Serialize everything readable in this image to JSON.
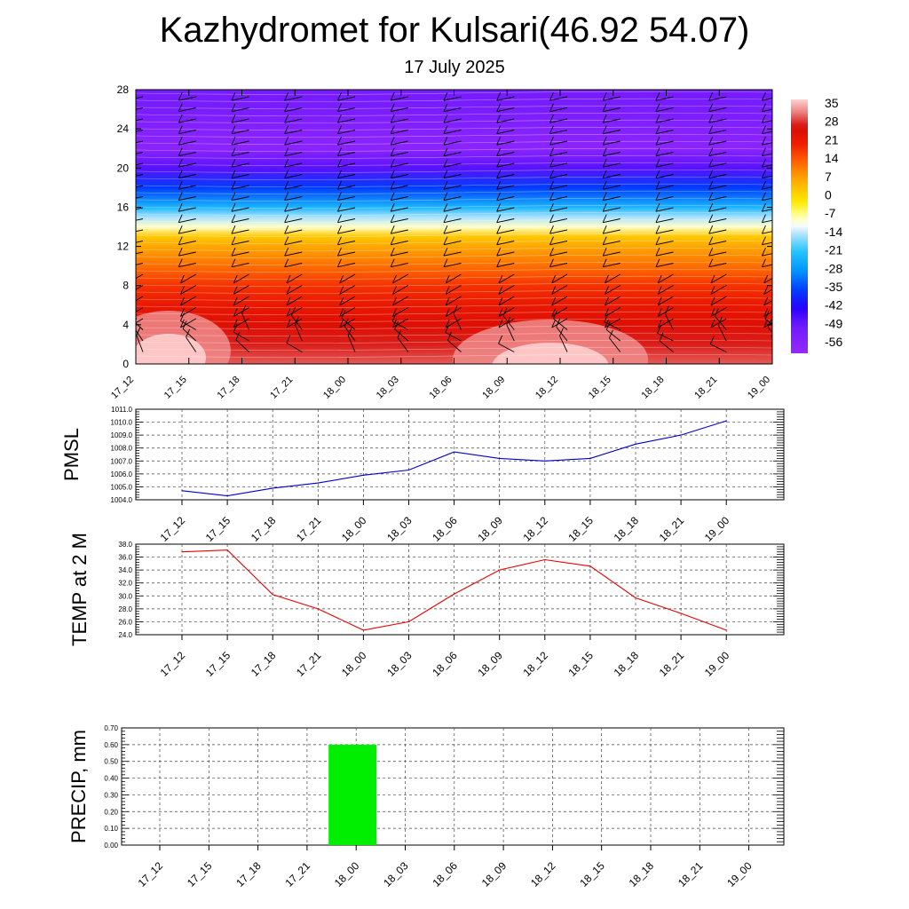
{
  "header": {
    "title": "Kazhydromet for Kulsari(46.92 54.07)",
    "date": "17 July 2025"
  },
  "chart_data": [
    {
      "id": "cross-section",
      "type": "heatmap",
      "title": "",
      "xlabel": "",
      "ylabel": "",
      "categories": [
        "17_12",
        "17_15",
        "17_18",
        "17_21",
        "18_00",
        "18_03",
        "18_06",
        "18_09",
        "18_12",
        "18_15",
        "18_18",
        "18_21",
        "19_00"
      ],
      "y_ticks": [
        0,
        4,
        8,
        12,
        16,
        20,
        24,
        28
      ],
      "ylim": [
        0,
        28
      ],
      "colorbar": {
        "labels": [
          "35",
          "28",
          "21",
          "14",
          "7",
          "0",
          "-7",
          "-14",
          "-21",
          "-28",
          "-35",
          "-42",
          "-49",
          "-56"
        ],
        "range": [
          -63,
          38
        ]
      },
      "temperature_profile_by_level": [
        {
          "level": 0,
          "value": 31
        },
        {
          "level": 2,
          "value": 28
        },
        {
          "level": 4,
          "value": 25
        },
        {
          "level": 6,
          "value": 22
        },
        {
          "level": 8,
          "value": 18
        },
        {
          "level": 10,
          "value": 12
        },
        {
          "level": 12,
          "value": 6
        },
        {
          "level": 13,
          "value": 2
        },
        {
          "level": 14,
          "value": -10
        },
        {
          "level": 15,
          "value": -16
        },
        {
          "level": 16,
          "value": -25
        },
        {
          "level": 18,
          "value": -38
        },
        {
          "level": 20,
          "value": -50
        },
        {
          "level": 22,
          "value": -60
        },
        {
          "level": 24,
          "value": -58
        },
        {
          "level": 26,
          "value": -55
        },
        {
          "level": 28,
          "value": -54
        }
      ],
      "wind_barbs": "shown",
      "colors": [
        "#9933ff",
        "#3300ff",
        "#00aaff",
        "#ffffff",
        "#ffff00",
        "#ff8800",
        "#dd1100",
        "#ffaaaa"
      ]
    },
    {
      "id": "pmsl",
      "type": "line",
      "ylabel": "PMSL",
      "categories": [
        "17_12",
        "17_15",
        "17_18",
        "17_21",
        "18_00",
        "18_03",
        "18_06",
        "18_09",
        "18_12",
        "18_15",
        "18_18",
        "18_21",
        "19_00"
      ],
      "y_ticks": [
        "1004.0",
        "1005.0",
        "1006.0",
        "1007.0",
        "1008.0",
        "1009.0",
        "1010.0",
        "1011.0"
      ],
      "ylim": [
        1004.0,
        1011.0
      ],
      "values": [
        1004.7,
        1004.3,
        1004.9,
        1005.3,
        1005.9,
        1006.3,
        1007.7,
        1007.2,
        1007.0,
        1007.2,
        1008.3,
        1009.0,
        1010.1
      ],
      "color": "#0000cc",
      "grid": true
    },
    {
      "id": "temp2m",
      "type": "line",
      "ylabel": "TEMP at 2 M",
      "categories": [
        "17_12",
        "17_15",
        "17_18",
        "17_21",
        "18_00",
        "18_03",
        "18_06",
        "18_09",
        "18_12",
        "18_15",
        "18_18",
        "18_21",
        "19_00"
      ],
      "y_ticks": [
        "24.0",
        "26.0",
        "28.0",
        "30.0",
        "32.0",
        "34.0",
        "36.0",
        "38.0"
      ],
      "ylim": [
        24.0,
        38.0
      ],
      "values": [
        36.8,
        37.1,
        30.2,
        28.0,
        24.7,
        26.0,
        30.3,
        34.0,
        35.6,
        34.6,
        29.7,
        27.3,
        24.7
      ],
      "color": "#ee0000",
      "grid": true
    },
    {
      "id": "precip",
      "type": "bar",
      "ylabel": "PRECIP, mm",
      "categories": [
        "17_12",
        "17_15",
        "17_18",
        "17_21",
        "18_00",
        "18_03",
        "18_06",
        "18_09",
        "18_12",
        "18_15",
        "18_18",
        "18_21",
        "19_00"
      ],
      "y_ticks": [
        "0.00",
        "0.10",
        "0.20",
        "0.30",
        "0.40",
        "0.50",
        "0.60",
        "0.70"
      ],
      "ylim": [
        0.0,
        0.7
      ],
      "values": [
        0,
        0,
        0,
        0,
        0.6,
        0,
        0,
        0,
        0,
        0,
        0,
        0,
        0
      ],
      "color": "#00ee00",
      "grid": true
    }
  ]
}
